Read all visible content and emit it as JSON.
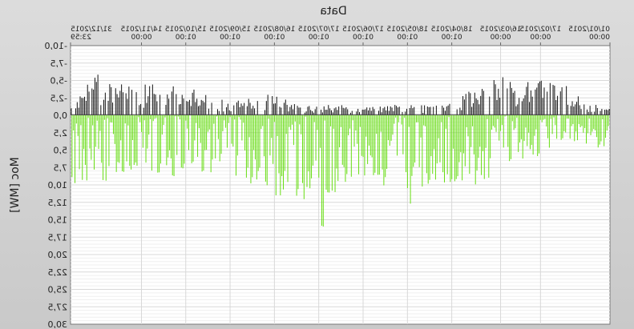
{
  "chart_data": {
    "type": "bar",
    "title": "",
    "xlabel": "Data",
    "ylabel": "Moc [MW]",
    "x_axis_position": "top",
    "mirrored_horizontally": true,
    "y_inverted": true,
    "ylim": [
      -10.0,
      30.0
    ],
    "yticks": [
      "-10,0",
      "-7,5",
      "-5,0",
      "-2,5",
      "0,0",
      "2,5",
      "5,0",
      "7,5",
      "10,0",
      "12,5",
      "15,0",
      "17,5",
      "20,0",
      "22,5",
      "25,0",
      "27,5",
      "30,0"
    ],
    "xticks": [
      {
        "date": "01/01/2015",
        "time": "00:00"
      },
      {
        "date": "17/02/2015",
        "time": "00:00"
      },
      {
        "date": "16/03/2015",
        "time": "00:00"
      },
      {
        "date": "18/04/2015",
        "time": "01:00"
      },
      {
        "date": "18/05/2015",
        "time": "01:00"
      },
      {
        "date": "17/06/2015",
        "time": "01:00"
      },
      {
        "date": "17/07/2015",
        "time": "01:00"
      },
      {
        "date": "16/08/2015",
        "time": "01:00"
      },
      {
        "date": "15/09/2015",
        "time": "01:00"
      },
      {
        "date": "15/10/2015",
        "time": "01:00"
      },
      {
        "date": "14/11/2015",
        "time": "00:00"
      },
      {
        "date": "31/12/2015",
        "time": "23:59"
      }
    ],
    "grid": true,
    "legend": "none",
    "series": [
      {
        "values_sign": "negative",
        "color": "#111111"
      },
      {
        "values_sign": "positive",
        "color": "#66dd11"
      }
    ],
    "envelope": [
      {
        "date": "2015-01-01",
        "min": -1.0,
        "max": 5.5
      },
      {
        "date": "2015-01-15",
        "min": -2.0,
        "max": 4.5
      },
      {
        "date": "2015-02-01",
        "min": -4.5,
        "max": 3.5
      },
      {
        "date": "2015-02-17",
        "min": -5.5,
        "max": 6.0
      },
      {
        "date": "2015-03-01",
        "min": -4.5,
        "max": 6.5
      },
      {
        "date": "2015-03-16",
        "min": -6.0,
        "max": 7.0
      },
      {
        "date": "2015-04-01",
        "min": -4.0,
        "max": 11.0
      },
      {
        "date": "2015-04-18",
        "min": -2.5,
        "max": 10.0
      },
      {
        "date": "2015-05-01",
        "min": -1.5,
        "max": 10.0
      },
      {
        "date": "2015-05-18",
        "min": -1.5,
        "max": 13.5
      },
      {
        "date": "2015-06-01",
        "min": -1.5,
        "max": 10.5
      },
      {
        "date": "2015-06-17",
        "min": -1.5,
        "max": 9.0
      },
      {
        "date": "2015-07-01",
        "min": -1.5,
        "max": 11.0
      },
      {
        "date": "2015-07-17",
        "min": -1.5,
        "max": 17.5
      },
      {
        "date": "2015-08-01",
        "min": -1.5,
        "max": 12.0
      },
      {
        "date": "2015-08-16",
        "min": -3.5,
        "max": 11.5
      },
      {
        "date": "2015-09-01",
        "min": -2.5,
        "max": 10.0
      },
      {
        "date": "2015-09-15",
        "min": -2.0,
        "max": 9.0
      },
      {
        "date": "2015-10-01",
        "min": -3.0,
        "max": 8.5
      },
      {
        "date": "2015-10-15",
        "min": -4.5,
        "max": 8.5
      },
      {
        "date": "2015-11-01",
        "min": -5.0,
        "max": 9.5
      },
      {
        "date": "2015-11-14",
        "min": -4.5,
        "max": 7.5
      },
      {
        "date": "2015-12-01",
        "min": -5.5,
        "max": 9.0
      },
      {
        "date": "2015-12-15",
        "min": -6.0,
        "max": 10.0
      },
      {
        "date": "2015-12-31",
        "min": -1.5,
        "max": 14.0
      }
    ]
  }
}
